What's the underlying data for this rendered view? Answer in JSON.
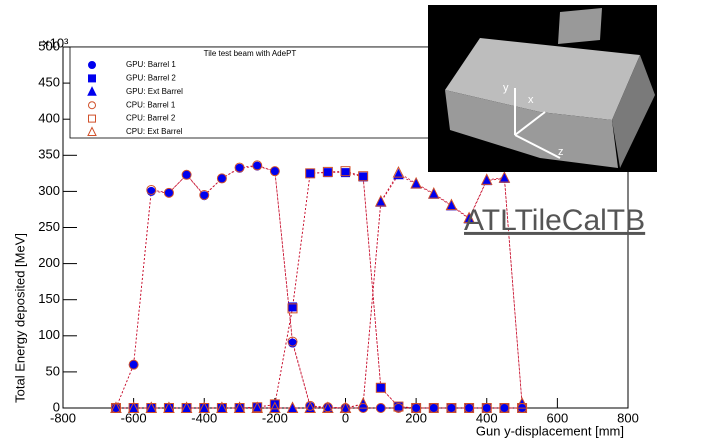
{
  "chart_data": {
    "type": "scatter",
    "legend_title": "Tile test beam with AdePT",
    "xlabel": "Gun y-displacement [mm]",
    "ylabel": "Total Energy deposited [MeV]",
    "y_exponent": "×10³",
    "annotations": [
      "ATLTileCalTB",
      "y",
      "x",
      "z"
    ],
    "xlim": [
      -800,
      800
    ],
    "xticks": [
      -800,
      -600,
      -400,
      -200,
      0,
      200,
      400,
      600,
      800
    ],
    "ylim": [
      0,
      500
    ],
    "yticks": [
      0,
      50,
      100,
      150,
      200,
      250,
      300,
      350,
      400,
      450,
      500
    ],
    "line_color": "#c8102e",
    "x": [
      -650,
      -600,
      -550,
      -500,
      -450,
      -400,
      -350,
      -300,
      -250,
      -200,
      -150,
      -100,
      -50,
      0,
      50,
      100,
      150,
      200,
      250,
      300,
      350,
      400,
      450,
      500
    ],
    "series": [
      {
        "name": "GPU: Barrel 1",
        "color": "#0000ee",
        "marker": "circle",
        "filled": true,
        "values": [
          0,
          60,
          300,
          298,
          323,
          294,
          318,
          332,
          335,
          328,
          90,
          2,
          1,
          0,
          0,
          0,
          0,
          0,
          0,
          0,
          0,
          0,
          0,
          0
        ]
      },
      {
        "name": "GPU: Barrel 2",
        "color": "#0000ee",
        "marker": "square",
        "filled": true,
        "values": [
          0,
          0,
          0,
          0,
          0,
          0,
          0,
          0,
          1,
          5,
          140,
          325,
          326,
          326,
          320,
          28,
          2,
          0,
          0,
          0,
          0,
          0,
          0,
          0
        ]
      },
      {
        "name": "GPU: Ext Barrel",
        "color": "#0000ee",
        "marker": "triangle",
        "filled": true,
        "values": [
          0,
          0,
          0,
          0,
          0,
          0,
          0,
          0,
          0,
          0,
          0,
          0,
          0,
          0,
          5,
          285,
          323,
          310,
          296,
          280,
          262,
          315,
          318,
          5
        ]
      },
      {
        "name": "CPU: Barrel 1",
        "color": "#d0502a",
        "marker": "circle",
        "filled": false,
        "values": [
          0,
          60,
          302,
          298,
          323,
          295,
          318,
          333,
          336,
          328,
          92,
          3,
          1,
          0,
          0,
          0,
          0,
          0,
          0,
          0,
          0,
          0,
          0,
          0
        ]
      },
      {
        "name": "CPU: Barrel 2",
        "color": "#d0502a",
        "marker": "square",
        "filled": false,
        "values": [
          0,
          0,
          0,
          0,
          0,
          0,
          0,
          0,
          1,
          5,
          138,
          325,
          327,
          328,
          321,
          28,
          2,
          0,
          0,
          0,
          0,
          0,
          0,
          0
        ]
      },
      {
        "name": "CPU: Ext Barrel",
        "color": "#d0502a",
        "marker": "triangle",
        "filled": false,
        "values": [
          0,
          0,
          0,
          0,
          0,
          0,
          0,
          0,
          0,
          0,
          0,
          0,
          0,
          0,
          6,
          286,
          326,
          311,
          297,
          281,
          263,
          316,
          319,
          6
        ]
      }
    ]
  }
}
